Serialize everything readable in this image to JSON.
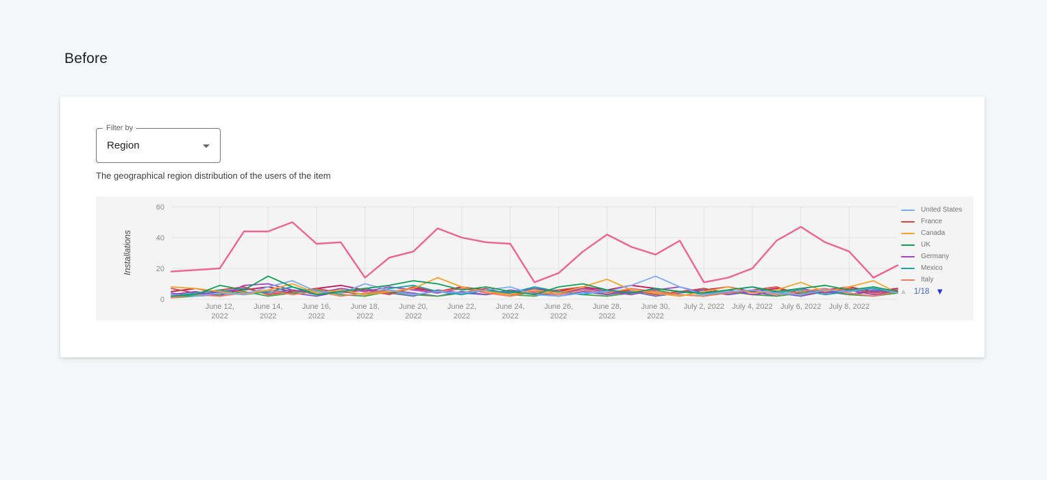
{
  "page": {
    "heading": "Before"
  },
  "card": {
    "filter": {
      "label": "Filter by",
      "value": "Region"
    },
    "description": "The geographical region distribution of the users of the item"
  },
  "chart_data": {
    "type": "line",
    "ylabel": "Installations",
    "ylim": [
      0,
      60
    ],
    "yticks": [
      0,
      20,
      40,
      60
    ],
    "x_range": [
      "June 10, 2022",
      "July 10, 2022"
    ],
    "grid": "on",
    "legend_position": "right",
    "colors": {
      "plot_bg": "#f4f4f4",
      "grid": "#e2e2e2",
      "tick_text": "#8b8b8b",
      "ylabel_text": "#3f3f3f"
    },
    "xticks": [
      {
        "day_index": 2,
        "line1": "June 12,",
        "line2": "2022"
      },
      {
        "day_index": 4,
        "line1": "June 14,",
        "line2": "2022"
      },
      {
        "day_index": 6,
        "line1": "June 16,",
        "line2": "2022"
      },
      {
        "day_index": 8,
        "line1": "June 18,",
        "line2": "2022"
      },
      {
        "day_index": 10,
        "line1": "June 20,",
        "line2": "2022"
      },
      {
        "day_index": 12,
        "line1": "June 22,",
        "line2": "2022"
      },
      {
        "day_index": 14,
        "line1": "June 24,",
        "line2": "2022"
      },
      {
        "day_index": 16,
        "line1": "June 26,",
        "line2": "2022"
      },
      {
        "day_index": 18,
        "line1": "June 28,",
        "line2": "2022"
      },
      {
        "day_index": 20,
        "line1": "June 30,",
        "line2": "2022"
      },
      {
        "day_index": 22,
        "line1": "July 2, 2022",
        "line2": ""
      },
      {
        "day_index": 24,
        "line1": "July 4, 2022",
        "line2": ""
      },
      {
        "day_index": 26,
        "line1": "July 6, 2022",
        "line2": ""
      },
      {
        "day_index": 28,
        "line1": "July 8, 2022",
        "line2": ""
      }
    ],
    "series": [
      {
        "name": "",
        "color": "#c2185b",
        "emphasis": false,
        "values": [
          5,
          7,
          4,
          6,
          8,
          5,
          7,
          9,
          6,
          4,
          7,
          5,
          8,
          6,
          4,
          7,
          5,
          8,
          6,
          9,
          7,
          5,
          6,
          8,
          5,
          7,
          4,
          6,
          8,
          5,
          7
        ]
      },
      {
        "name": "",
        "color": "#5c6bc0",
        "emphasis": false,
        "values": [
          2,
          3,
          5,
          7,
          4,
          6,
          3,
          5,
          7,
          4,
          2,
          6,
          4,
          3,
          5,
          7,
          4,
          6,
          3,
          5,
          2,
          4,
          6,
          3,
          5,
          2,
          4,
          6,
          3,
          5,
          4
        ]
      },
      {
        "name": "",
        "color": "#7e57c2",
        "emphasis": false,
        "values": [
          4,
          2,
          5,
          3,
          6,
          4,
          2,
          5,
          3,
          6,
          4,
          2,
          5,
          3,
          6,
          4,
          2,
          5,
          3,
          6,
          4,
          2,
          5,
          3,
          6,
          4,
          2,
          5,
          3,
          6,
          4
        ]
      },
      {
        "name": "",
        "color": "#43a047",
        "emphasis": false,
        "values": [
          1,
          2,
          3,
          5,
          2,
          4,
          6,
          3,
          2,
          5,
          3,
          2,
          4,
          6,
          3,
          2,
          5,
          3,
          2,
          4,
          6,
          3,
          2,
          5,
          3,
          2,
          4,
          6,
          3,
          2,
          4
        ]
      },
      {
        "name": "France",
        "color": "#db4437",
        "emphasis": false,
        "values": [
          7,
          4,
          6,
          8,
          3,
          5,
          7,
          4,
          6,
          3,
          8,
          5,
          4,
          7,
          3,
          5,
          6,
          8,
          4,
          6,
          3,
          5,
          7,
          4,
          6,
          8,
          3,
          5,
          7,
          4,
          6
        ]
      },
      {
        "name": "Germany",
        "color": "#a142c0",
        "emphasis": false,
        "values": [
          3,
          5,
          2,
          9,
          10,
          6,
          4,
          7,
          5,
          8,
          6,
          4,
          7,
          5,
          3,
          6,
          4,
          7,
          5,
          3,
          6,
          8,
          4,
          6,
          3,
          5,
          7,
          4,
          6,
          3,
          5
        ]
      },
      {
        "name": "Mexico",
        "color": "#17a2ac",
        "emphasis": false,
        "values": [
          2,
          4,
          6,
          3,
          5,
          8,
          4,
          6,
          3,
          7,
          9,
          5,
          3,
          6,
          4,
          8,
          5,
          3,
          6,
          4,
          7,
          5,
          3,
          6,
          8,
          4,
          6,
          3,
          5,
          7,
          4
        ]
      },
      {
        "name": "Italy",
        "color": "#f4795b",
        "emphasis": false,
        "values": [
          1,
          3,
          2,
          4,
          6,
          3,
          5,
          2,
          4,
          6,
          3,
          5,
          7,
          4,
          2,
          5,
          3,
          6,
          4,
          7,
          5,
          3,
          2,
          4,
          6,
          3,
          5,
          7,
          4,
          2,
          5
        ]
      },
      {
        "name": "Canada",
        "color": "#f4a428",
        "emphasis": false,
        "values": [
          8,
          7,
          5,
          3,
          6,
          10,
          4,
          6,
          3,
          5,
          7,
          14,
          8,
          5,
          3,
          6,
          4,
          8,
          13,
          6,
          4,
          2,
          5,
          8,
          4,
          6,
          11,
          5,
          8,
          12,
          4
        ]
      },
      {
        "name": "United States",
        "color": "#7baaf7",
        "emphasis": false,
        "values": [
          3,
          2,
          4,
          3,
          8,
          12,
          5,
          4,
          10,
          6,
          3,
          5,
          4,
          6,
          8,
          3,
          2,
          4,
          5,
          9,
          15,
          8,
          3,
          5,
          6,
          4,
          3,
          6,
          5,
          8,
          4
        ]
      },
      {
        "name": "UK",
        "color": "#0f9d58",
        "emphasis": false,
        "values": [
          2,
          3,
          9,
          6,
          15,
          8,
          3,
          5,
          7,
          9,
          12,
          10,
          6,
          8,
          5,
          3,
          8,
          10,
          6,
          4,
          7,
          5,
          4,
          6,
          8,
          5,
          7,
          9,
          6,
          8,
          5
        ]
      },
      {
        "name": "",
        "color": "#f06292",
        "emphasis": true,
        "values": [
          18,
          19,
          20,
          44,
          44,
          50,
          36,
          37,
          14,
          27,
          31,
          46,
          40,
          37,
          36,
          11,
          17,
          31,
          42,
          34,
          29,
          38,
          11,
          14,
          20,
          38,
          47,
          37,
          31,
          14,
          22
        ]
      }
    ],
    "legend": {
      "items": [
        {
          "label": "United States",
          "color": "#7baaf7"
        },
        {
          "label": "France",
          "color": "#db4437"
        },
        {
          "label": "Canada",
          "color": "#f4a428"
        },
        {
          "label": "UK",
          "color": "#0f9d58"
        },
        {
          "label": "Germany",
          "color": "#a142c0"
        },
        {
          "label": "Mexico",
          "color": "#17a2ac"
        },
        {
          "label": "Italy",
          "color": "#f4795b"
        }
      ],
      "page_label": "1/18"
    }
  }
}
